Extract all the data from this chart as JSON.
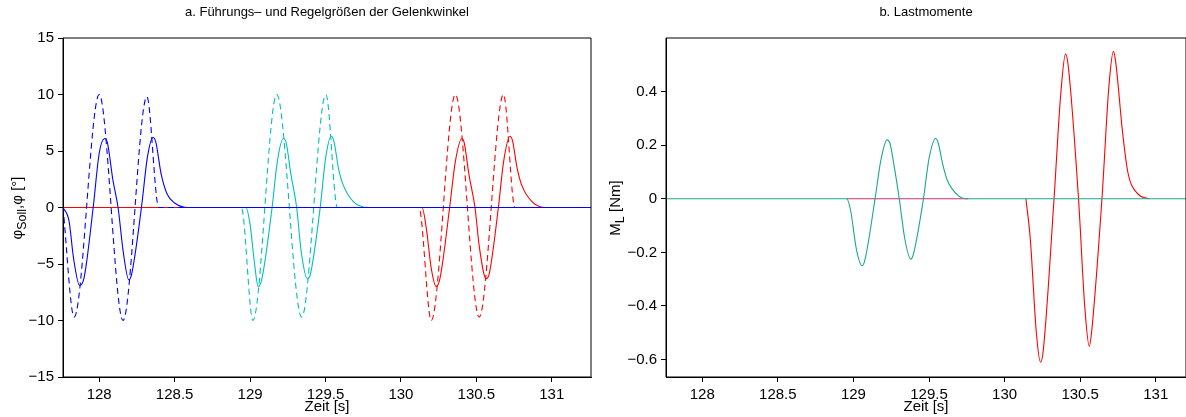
{
  "chart_data": [
    {
      "type": "line",
      "title": "a. Führungs– und Regelgrößen der Gelenkwinkel",
      "xlabel": "Zeit [s]",
      "ylabel": "φ$_{Soll}$,φ [°]",
      "xlim": [
        127.76,
        131.26
      ],
      "xticks": [
        128,
        128.5,
        129,
        129.5,
        130,
        130.5,
        131
      ],
      "ylim": [
        -15,
        15
      ],
      "yticks": [
        {
          "value": -15,
          "label": "−15"
        },
        {
          "value": -10,
          "label": "−10"
        },
        {
          "value": -5,
          "label": "−5"
        },
        0,
        5,
        10,
        15
      ],
      "marker": "none",
      "series": [
        {
          "color": "#0000ff",
          "line_style": "solid",
          "x": [
            127.76,
            127.8,
            127.83,
            127.87,
            127.9,
            127.96,
            128.0,
            128.036,
            128.055,
            128.09,
            128.125,
            128.16,
            128.196,
            128.215,
            128.28,
            128.32,
            128.357,
            128.375,
            128.41,
            128.45,
            128.5,
            128.59,
            131.26
          ],
          "values": [
            0,
            -1.2,
            -4.5,
            -6.9,
            -6.2,
            0,
            4.8,
            6.1,
            5.7,
            2.5,
            0,
            -4,
            -6.4,
            -5.9,
            0,
            4.5,
            6.2,
            5.8,
            3,
            1.2,
            0.4,
            0,
            0
          ]
        },
        {
          "color": "#0000ff",
          "line_style": "dashed",
          "x": [
            127.76,
            127.834,
            128.0,
            128.158,
            128.316,
            128.395,
            131.26
          ],
          "values": [
            0,
            -9.7,
            10,
            -10,
            9.8,
            0,
            0
          ]
        },
        {
          "color": "#ff0000",
          "line_style": "solid",
          "x": [
            127.76,
            130.14,
            130.17,
            130.2,
            130.234,
            130.26,
            130.323,
            130.36,
            130.404,
            130.42,
            130.45,
            130.491,
            130.52,
            130.565,
            130.585,
            130.646,
            130.68,
            130.723,
            130.74,
            130.77,
            130.8,
            130.87,
            130.96,
            131.26
          ],
          "values": [
            0,
            0,
            -2,
            -5.3,
            -7,
            -6.2,
            0,
            4,
            6.1,
            5.7,
            3,
            0,
            -3.5,
            -6.3,
            -5.9,
            0,
            4,
            6.3,
            5.9,
            3.5,
            2,
            0.5,
            0,
            0
          ]
        },
        {
          "color": "#ff0000",
          "line_style": "dashed",
          "x": [
            127.76,
            130.119,
            130.201,
            130.361,
            130.519,
            130.68,
            130.756,
            131.26
          ],
          "values": [
            0,
            0,
            -10,
            10,
            -9.7,
            10,
            0,
            0
          ]
        },
        {
          "color": "#00bfbf",
          "line_style": "solid",
          "x": [
            127.76,
            128.973,
            129.0,
            129.03,
            129.054,
            129.08,
            129.146,
            129.18,
            129.22,
            129.24,
            129.27,
            129.309,
            129.34,
            129.38,
            129.4,
            129.465,
            129.5,
            129.538,
            129.555,
            129.59,
            129.617,
            129.686,
            129.788,
            131.26
          ],
          "values": [
            0,
            0,
            -1.5,
            -5,
            -7,
            -6.2,
            0,
            4,
            6.1,
            5.7,
            3,
            0,
            -4,
            -6.3,
            -5.9,
            0,
            4.3,
            6.3,
            5.9,
            3.2,
            2,
            0.5,
            0,
            0
          ]
        },
        {
          "color": "#00bfbf",
          "line_style": "dashed",
          "x": [
            127.76,
            128.942,
            129.019,
            129.177,
            129.342,
            129.503,
            129.579,
            131.26
          ],
          "values": [
            0,
            0,
            -10,
            10,
            -9.7,
            10,
            0,
            0
          ]
        }
      ]
    },
    {
      "type": "line",
      "title": "b. Lastmomente",
      "xlabel": "Zeit [s]",
      "ylabel": "M$_{L}$ [Nm]",
      "xlim": [
        127.76,
        131.2
      ],
      "xticks": [
        128,
        128.5,
        129,
        129.5,
        130,
        130.5,
        131
      ],
      "ylim": [
        -0.665,
        0.6
      ],
      "yticks": [
        {
          "value": -0.6,
          "label": "−0.6"
        },
        {
          "value": -0.4,
          "label": "−0.4"
        },
        {
          "value": -0.2,
          "label": "−0.2"
        },
        0,
        0.2,
        0.4
      ],
      "marker": "none",
      "series": [
        {
          "color": "#1aa88e",
          "line_style": "solid",
          "x": [
            127.76,
            128.955,
            128.98,
            129.02,
            129.057,
            129.075,
            129.143,
            129.18,
            129.222,
            129.24,
            129.27,
            129.303,
            129.34,
            129.379,
            129.395,
            129.463,
            129.5,
            129.544,
            129.56,
            129.59,
            129.62,
            129.697,
            129.76,
            131.2
          ],
          "values": [
            0,
            0,
            -0.04,
            -0.19,
            -0.25,
            -0.23,
            0,
            0.14,
            0.22,
            0.21,
            0.12,
            0,
            -0.15,
            -0.225,
            -0.21,
            0,
            0.15,
            0.225,
            0.21,
            0.13,
            0.07,
            0.01,
            0,
            0
          ]
        },
        {
          "color": "#c0307a",
          "line_style": "solid",
          "x": [
            128.955,
            129.76
          ],
          "values": [
            0,
            0
          ]
        },
        {
          "color": "#ff0000",
          "line_style": "solid",
          "x": [
            130.141,
            130.17,
            130.21,
            130.238,
            130.255,
            130.327,
            130.37,
            130.403,
            130.42,
            130.489,
            130.53,
            130.56,
            130.575,
            130.644,
            130.69,
            130.72,
            130.735,
            130.78,
            130.815,
            130.878,
            130.954
          ],
          "values": [
            0,
            -0.15,
            -0.5,
            -0.61,
            -0.57,
            0,
            0.38,
            0.54,
            0.5,
            0,
            -0.4,
            -0.55,
            -0.5,
            0,
            0.42,
            0.55,
            0.51,
            0.25,
            0.1,
            0.02,
            0
          ]
        }
      ]
    }
  ]
}
